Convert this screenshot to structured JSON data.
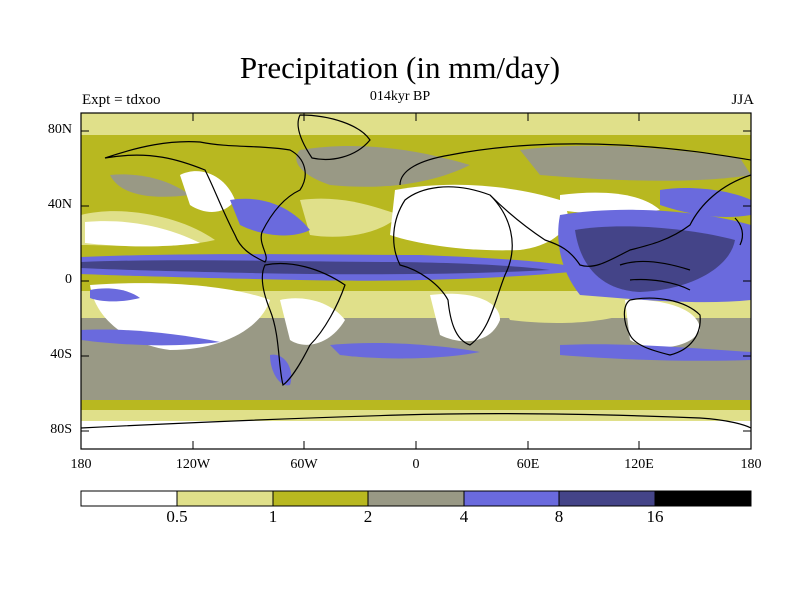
{
  "figure": {
    "title": "Precipitation (in mm/day)",
    "experiment": "Expt = tdxoo",
    "period": "014kyr BP",
    "season": "JJA"
  },
  "axes": {
    "y_ticks": [
      "80N",
      "40N",
      "0",
      "40S",
      "80S"
    ],
    "y_values": [
      80,
      40,
      0,
      -40,
      -80
    ],
    "x_ticks": [
      "180",
      "120W",
      "60W",
      "0",
      "60E",
      "120E",
      "180"
    ],
    "x_values": [
      -180,
      -120,
      -60,
      0,
      60,
      120,
      180
    ]
  },
  "colorbar": {
    "labels": [
      "0.5",
      "1",
      "2",
      "4",
      "8",
      "16"
    ],
    "colors": [
      "#ffffff",
      "#e0e08a",
      "#b8b820",
      "#999985",
      "#6a6add",
      "#444488",
      "#000000"
    ]
  },
  "colors": {
    "c0": "#ffffff",
    "c1": "#e0e08a",
    "c2": "#b8b820",
    "c3": "#999985",
    "c4": "#6a6add",
    "c5": "#444488",
    "c6": "#000000"
  }
}
